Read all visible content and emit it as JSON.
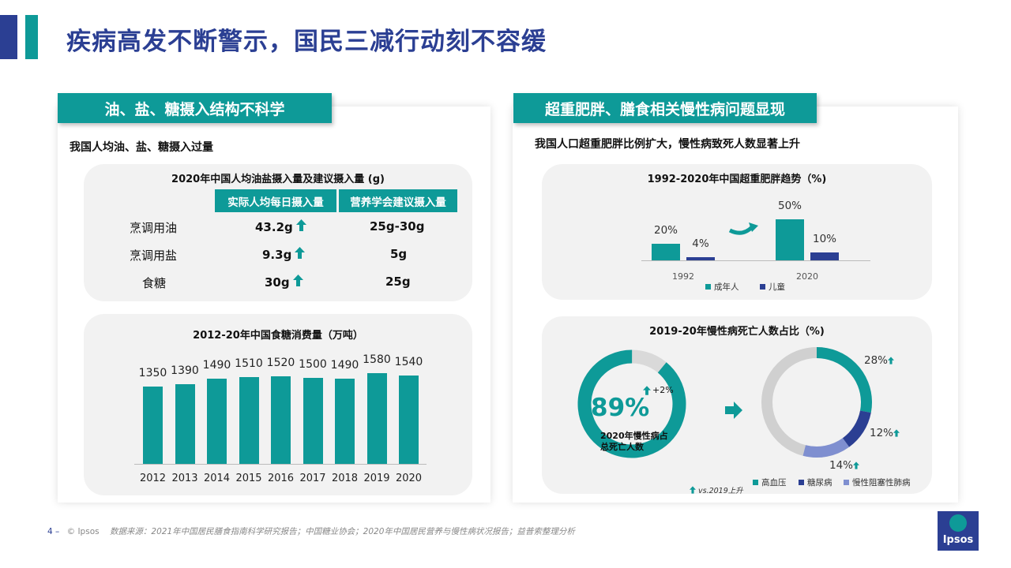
{
  "header": {
    "title": "疾病高发不断警示，国民三减行动刻不容缓"
  },
  "left": {
    "banner": "油、盐、糖摄入结构不科学",
    "subhead": "我国人均油、盐、糖摄入过量",
    "table_card": {
      "title": "2020年中国人均油盐摄入量及建议摄入量 (g)",
      "columns": [
        "实际人均每日摄入量",
        "营养学会建议摄入量"
      ],
      "rows": [
        {
          "label": "烹调用油",
          "actual": "43.2g",
          "recommended": "25g-30g"
        },
        {
          "label": "烹调用盐",
          "actual": "9.3g",
          "recommended": "5g"
        },
        {
          "label": "食糖",
          "actual": "30g",
          "recommended": "25g"
        }
      ]
    },
    "sugar_chart": {
      "title": "2012-20年中国食糖消费量（万吨）",
      "categories": [
        "2012",
        "2013",
        "2014",
        "2015",
        "2016",
        "2017",
        "2018",
        "2019",
        "2020"
      ],
      "values": [
        1350,
        1390,
        1490,
        1510,
        1520,
        1500,
        1490,
        1580,
        1540
      ],
      "labels": [
        "1350",
        "1390",
        "1490",
        "1510",
        "1520",
        "1500",
        "1490",
        "1580",
        "1540"
      ]
    }
  },
  "right": {
    "banner": "超重肥胖、膳食相关慢性病问题显现",
    "subhead": "我国人口超重肥胖比例扩大，慢性病致死人数显著上升",
    "obesity_card": {
      "title": "1992-2020年中国超重肥胖趋势（%)",
      "labels": {
        "adult_1992": "20%",
        "child_1992": "4%",
        "adult_2020": "50%",
        "child_2020": "10%"
      },
      "years": [
        "1992",
        "2020"
      ],
      "legend": [
        "成年人",
        "儿童"
      ]
    },
    "chronic_card": {
      "title": "2019-20年慢性病死亡人数占比（%)",
      "big_pct": "89%",
      "change": "+2%",
      "note_line1": "2020年慢性病占",
      "note_line2": "总死亡人数",
      "ring_labels": {
        "hypertension": "28%",
        "diabetes": "12%",
        "copd": "14%"
      },
      "legend": [
        "高血压",
        "糖尿病",
        "慢性阻塞性肺病"
      ],
      "footnote": "vs.2019上升"
    }
  },
  "footer": {
    "page": "4 –",
    "brand": "© Ipsos",
    "source": "数据来源：2021年中国居民膳食指南科学研究报告；中国糖业协会；2020年中国居民营养与慢性病状况报告；益普索整理分析"
  },
  "logo": {
    "text": "Ipsos"
  },
  "colors": {
    "teal": "#0e9a98",
    "navy": "#2b3f93",
    "grey": "#d0d0d0",
    "light_blue": "#7f8fd0"
  },
  "chart_data": [
    {
      "type": "bar",
      "title": "2012-20年中国食糖消费量（万吨）",
      "categories": [
        "2012",
        "2013",
        "2014",
        "2015",
        "2016",
        "2017",
        "2018",
        "2019",
        "2020"
      ],
      "values": [
        1350,
        1390,
        1490,
        1510,
        1520,
        1500,
        1490,
        1580,
        1540
      ]
    },
    {
      "type": "bar",
      "title": "1992-2020年中国超重肥胖趋势（%)",
      "categories": [
        "1992",
        "2020"
      ],
      "series": [
        {
          "name": "成年人",
          "values": [
            20,
            50
          ]
        },
        {
          "name": "儿童",
          "values": [
            4,
            10
          ]
        }
      ]
    },
    {
      "type": "pie",
      "title": "2019-20年慢性病死亡人数占比（%)",
      "categories": [
        "2020年慢性病占总死亡人数"
      ],
      "values": [
        89
      ]
    },
    {
      "type": "pie",
      "categories": [
        "高血压",
        "糖尿病",
        "慢性阻塞性肺病"
      ],
      "values": [
        28,
        12,
        14
      ]
    }
  ]
}
